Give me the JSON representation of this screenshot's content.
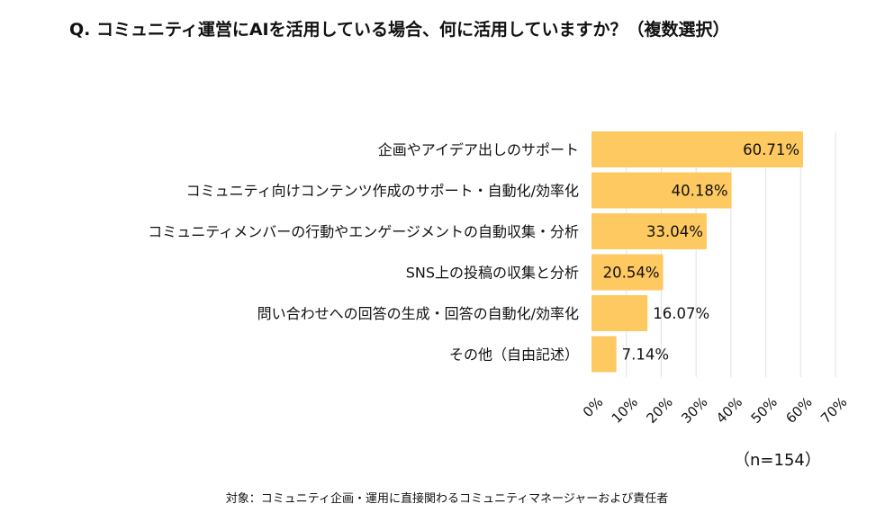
{
  "title": "Q. コミュニティ運営にAIを活用している場合、何に活用していますか？（複数選択）",
  "sample_size": "（n=154）",
  "footnote": "対象：コミュニティ企画・運用に直接関わるコミュニティマネージャーおよび責任者",
  "chart_data": {
    "type": "bar",
    "orientation": "horizontal",
    "categories": [
      "企画やアイデア出しのサポート",
      "コミュニティ向けコンテンツ作成のサポート・自動化/効率化",
      "コミュニティメンバーの行動やエンゲージメントの自動収集・分析",
      "SNS上の投稿の収集と分析",
      "問い合わせへの回答の生成・回答の自動化/効率化",
      "その他（自由記述）"
    ],
    "values": [
      60.71,
      40.18,
      33.04,
      20.54,
      16.07,
      7.14
    ],
    "data_labels": [
      "60.71%",
      "40.18%",
      "33.04%",
      "20.54%",
      "16.07%",
      "7.14%"
    ],
    "xlim": [
      0,
      70
    ],
    "x_ticks": [
      "0%",
      "10%",
      "20%",
      "30%",
      "40%",
      "50%",
      "60%",
      "70%"
    ],
    "grid": true,
    "bar_color": "#FDC960"
  }
}
